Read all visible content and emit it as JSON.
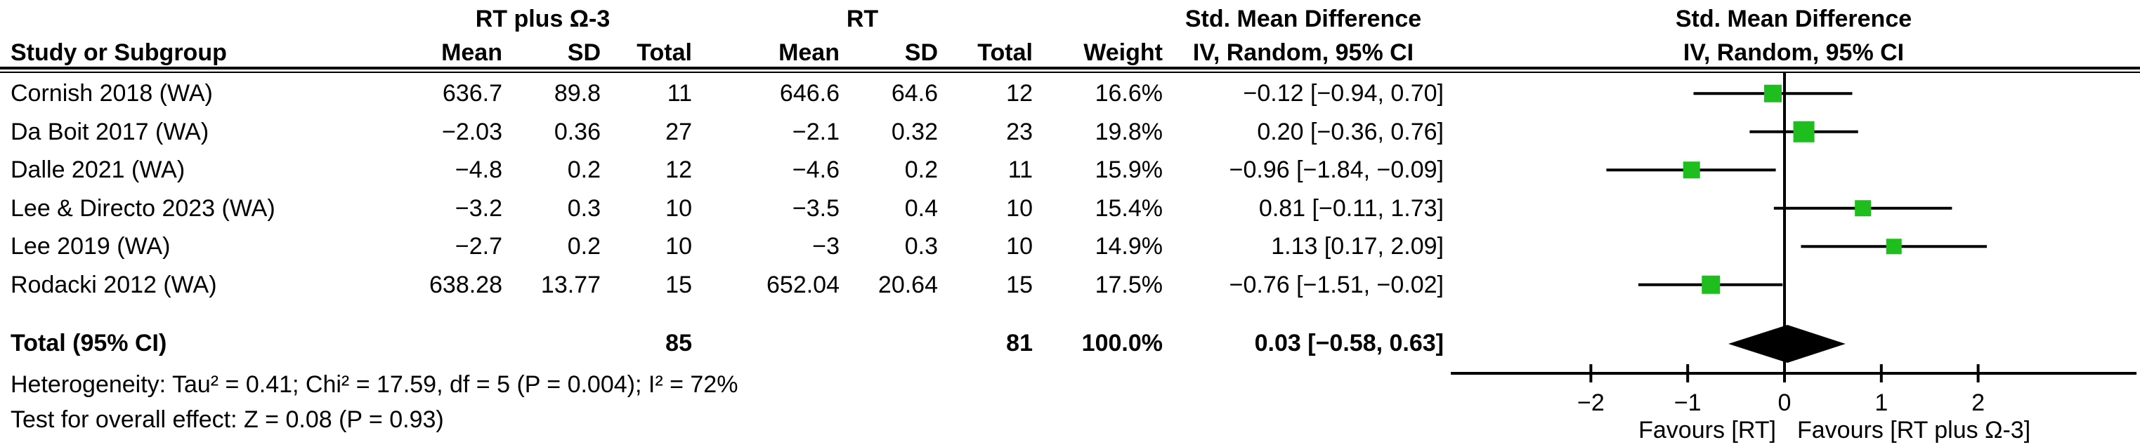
{
  "table": {
    "group1_header": "RT plus Ω-3",
    "group2_header": "RT",
    "effect_header": "Std. Mean Difference",
    "plot_header": "Std. Mean Difference",
    "col_headers": {
      "study": "Study or Subgroup",
      "mean1": "Mean",
      "sd1": "SD",
      "total1": "Total",
      "mean2": "Mean",
      "sd2": "SD",
      "total2": "Total",
      "weight": "Weight",
      "ci": "IV, Random, 95% CI",
      "plot_ci": "IV, Random, 95% CI"
    },
    "rows": [
      {
        "study": "Cornish 2018 (WA)",
        "mean1": "636.7",
        "sd1": "89.8",
        "total1": "11",
        "mean2": "646.6",
        "sd2": "64.6",
        "total2": "12",
        "weight": "16.6%",
        "ci": "−0.12 [−0.94, 0.70]"
      },
      {
        "study": "Da Boit 2017 (WA)",
        "mean1": "−2.03",
        "sd1": "0.36",
        "total1": "27",
        "mean2": "−2.1",
        "sd2": "0.32",
        "total2": "23",
        "weight": "19.8%",
        "ci": "0.20 [−0.36, 0.76]"
      },
      {
        "study": "Dalle 2021 (WA)",
        "mean1": "−4.8",
        "sd1": "0.2",
        "total1": "12",
        "mean2": "−4.6",
        "sd2": "0.2",
        "total2": "11",
        "weight": "15.9%",
        "ci": "−0.96 [−1.84, −0.09]"
      },
      {
        "study": "Lee & Directo 2023 (WA)",
        "mean1": "−3.2",
        "sd1": "0.3",
        "total1": "10",
        "mean2": "−3.5",
        "sd2": "0.4",
        "total2": "10",
        "weight": "15.4%",
        "ci": "0.81 [−0.11, 1.73]"
      },
      {
        "study": "Lee 2019 (WA)",
        "mean1": "−2.7",
        "sd1": "0.2",
        "total1": "10",
        "mean2": "−3",
        "sd2": "0.3",
        "total2": "10",
        "weight": "14.9%",
        "ci": "1.13 [0.17, 2.09]"
      },
      {
        "study": "Rodacki 2012 (WA)",
        "mean1": "638.28",
        "sd1": "13.77",
        "total1": "15",
        "mean2": "652.04",
        "sd2": "20.64",
        "total2": "15",
        "weight": "17.5%",
        "ci": "−0.76 [−1.51, −0.02]"
      }
    ],
    "total_row": {
      "label": "Total (95% CI)",
      "total1": "85",
      "total2": "81",
      "weight": "100.0%",
      "ci": "0.03 [−0.58, 0.63]"
    },
    "heterogeneity": "Heterogeneity: Tau² = 0.41; Chi² = 17.59, df = 5 (P = 0.004); I² = 72%",
    "overall_effect": "Test for overall effect: Z = 0.08 (P = 0.93)"
  },
  "chart_data": {
    "type": "forest",
    "title": "Std. Mean Difference",
    "subtitle": "IV, Random, 95% CI",
    "effect_measure": "Std. Mean Difference, IV, Random, 95% CI",
    "studies": [
      {
        "name": "Cornish 2018 (WA)",
        "est": -0.12,
        "lo": -0.94,
        "hi": 0.7,
        "weight": 16.6
      },
      {
        "name": "Da Boit 2017 (WA)",
        "est": 0.2,
        "lo": -0.36,
        "hi": 0.76,
        "weight": 19.8
      },
      {
        "name": "Dalle 2021 (WA)",
        "est": -0.96,
        "lo": -1.84,
        "hi": -0.09,
        "weight": 15.9
      },
      {
        "name": "Lee & Directo 2023 (WA)",
        "est": 0.81,
        "lo": -0.11,
        "hi": 1.73,
        "weight": 15.4
      },
      {
        "name": "Lee 2019 (WA)",
        "est": 1.13,
        "lo": 0.17,
        "hi": 2.09,
        "weight": 14.9
      },
      {
        "name": "Rodacki 2012 (WA)",
        "est": -0.76,
        "lo": -1.51,
        "hi": -0.02,
        "weight": 17.5
      }
    ],
    "total": {
      "label": "Total (95% CI)",
      "est": 0.03,
      "lo": -0.58,
      "hi": 0.63,
      "weight": 100.0
    },
    "axis": {
      "ticks": [
        -2,
        -1,
        0,
        1,
        2
      ],
      "min": -3.45,
      "max": 3.6,
      "zero_line": true
    },
    "favours_left": "Favours [RT]",
    "favours_right": "Favours [RT plus Ω-3]",
    "marker_color": "#1fbe1f",
    "line_color": "#000000"
  }
}
